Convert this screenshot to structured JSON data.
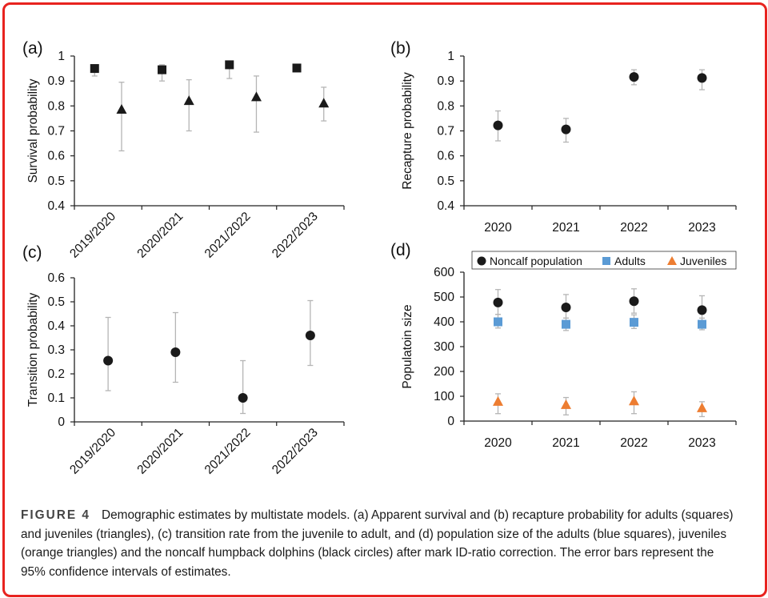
{
  "figure": {
    "caption_label": "FIGURE 4",
    "caption_text": "Demographic estimates by multistate models. (a) Apparent survival and (b) recapture probability for adults (squares) and juveniles (triangles), (c) transition rate from the juvenile to adult, and (d) population size of the adults (blue squares), juveniles (orange triangles) and the noncalf humpback dolphins (black circles) after mark ID-ratio correction. The error bars represent the 95% confidence intervals of estimates."
  },
  "chart_data": [
    {
      "panel": "(a)",
      "type": "scatter",
      "ylabel": "Survival probability",
      "xlabel": "",
      "categories": [
        "2019/2020",
        "2020/2021",
        "2021/2022",
        "2022/2023"
      ],
      "yticks": [
        "0.4",
        "0.5",
        "0.6",
        "0.7",
        "0.8",
        "0.9",
        "1"
      ],
      "ylim": [
        0.4,
        1
      ],
      "series": [
        {
          "name": "Adults",
          "marker": "square",
          "color": "#1a1a1a",
          "values": [
            0.95,
            0.945,
            0.965,
            0.952
          ],
          "lower": [
            0.92,
            0.9,
            0.91,
            0.952
          ],
          "upper": [
            0.965,
            0.965,
            0.98,
            0.952
          ]
        },
        {
          "name": "Juveniles",
          "marker": "triangle",
          "color": "#1a1a1a",
          "values": [
            0.785,
            0.82,
            0.835,
            0.81
          ],
          "lower": [
            0.62,
            0.7,
            0.695,
            0.74
          ],
          "upper": [
            0.895,
            0.905,
            0.92,
            0.875
          ]
        }
      ]
    },
    {
      "panel": "(b)",
      "type": "scatter",
      "ylabel": "Recapture probability",
      "xlabel": "",
      "categories": [
        "2020",
        "2021",
        "2022",
        "2023"
      ],
      "yticks": [
        "0.4",
        "0.5",
        "0.6",
        "0.7",
        "0.8",
        "0.9",
        "1"
      ],
      "ylim": [
        0.4,
        1
      ],
      "series": [
        {
          "name": "Recapture",
          "marker": "circle",
          "color": "#1a1a1a",
          "values": [
            0.722,
            0.706,
            0.916,
            0.912
          ],
          "lower": [
            0.66,
            0.655,
            0.885,
            0.865
          ],
          "upper": [
            0.78,
            0.75,
            0.945,
            0.945
          ]
        }
      ]
    },
    {
      "panel": "(c)",
      "type": "scatter",
      "ylabel": "Transition probability",
      "xlabel": "",
      "categories": [
        "2019/2020",
        "2020/2021",
        "2021/2022",
        "2022/2023"
      ],
      "yticks": [
        "0",
        "0.1",
        "0.2",
        "0.3",
        "0.4",
        "0.5",
        "0.6"
      ],
      "ylim": [
        0,
        0.6
      ],
      "series": [
        {
          "name": "Transition",
          "marker": "circle",
          "color": "#1a1a1a",
          "values": [
            0.255,
            0.29,
            0.1,
            0.36
          ],
          "lower": [
            0.13,
            0.165,
            0.035,
            0.235
          ],
          "upper": [
            0.435,
            0.455,
            0.255,
            0.505
          ]
        }
      ]
    },
    {
      "panel": "(d)",
      "type": "scatter",
      "ylabel": "Populatoin size",
      "xlabel": "",
      "categories": [
        "2020",
        "2021",
        "2022",
        "2023"
      ],
      "yticks": [
        "0",
        "100",
        "200",
        "300",
        "400",
        "500",
        "600"
      ],
      "ylim": [
        0,
        600
      ],
      "legend": [
        "Noncalf population",
        "Adults",
        "Juveniles"
      ],
      "series": [
        {
          "name": "Noncalf population",
          "marker": "circle",
          "color": "#1a1a1a",
          "values": [
            478,
            458,
            483,
            447
          ],
          "lower": [
            430,
            415,
            435,
            400
          ],
          "upper": [
            530,
            510,
            533,
            505
          ]
        },
        {
          "name": "Adults",
          "marker": "square",
          "color": "#5b9bd5",
          "values": [
            400,
            390,
            398,
            390
          ],
          "lower": [
            375,
            365,
            373,
            368
          ],
          "upper": [
            430,
            415,
            428,
            415
          ]
        },
        {
          "name": "Juveniles",
          "marker": "triangle",
          "color": "#ed7d31",
          "values": [
            78,
            65,
            80,
            52
          ],
          "lower": [
            30,
            25,
            30,
            18
          ],
          "upper": [
            110,
            95,
            118,
            78
          ]
        }
      ]
    }
  ]
}
